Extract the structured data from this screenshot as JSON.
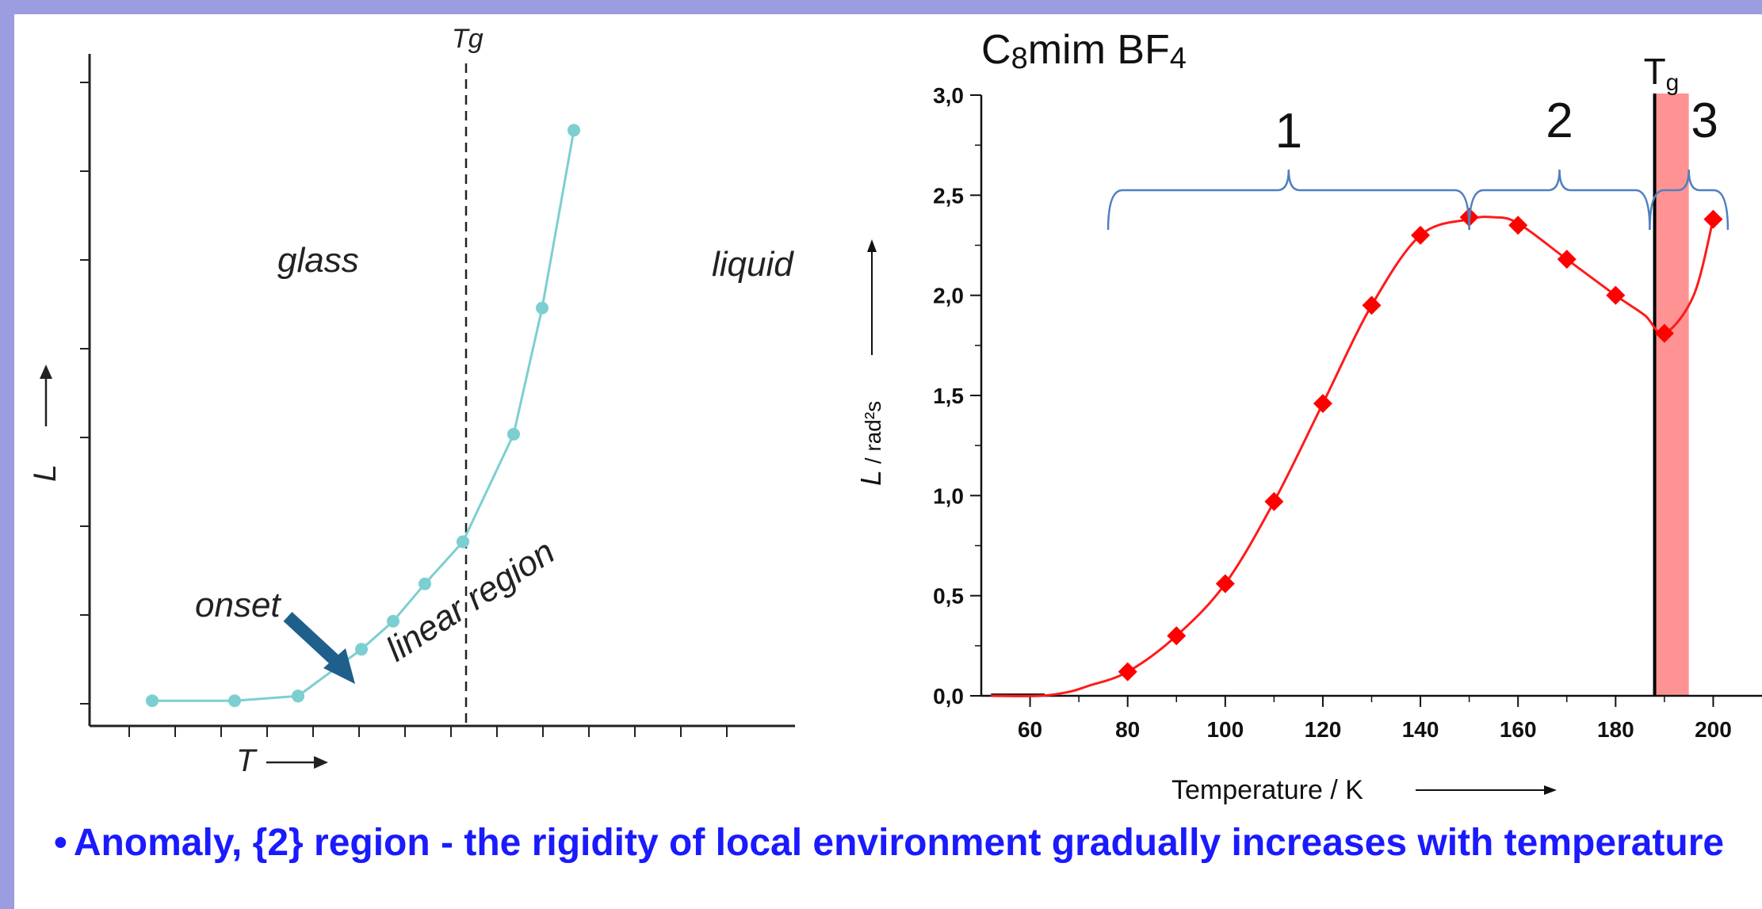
{
  "colors": {
    "frame": "#9c9ce0",
    "left_curve": "#7ccfd0",
    "right_curve": "#ff0000",
    "tg_band": "#ff8080",
    "bracket": "#4f7fc0",
    "caption": "#1a1aff"
  },
  "chart_data": [
    {
      "type": "line",
      "title": "",
      "xlabel": "T",
      "ylabel": "L",
      "tick_labels": "none",
      "series": [
        {
          "x": [
            1.4,
            2.7,
            3.7
          ],
          "y": [
            0.1,
            0.1,
            0.15
          ]
        },
        {
          "x": [
            3.7,
            4.7,
            5.2,
            5.7,
            6.3
          ],
          "y": [
            0.15,
            0.65,
            0.95,
            1.35,
            1.8
          ]
        },
        {
          "x": [
            6.3,
            7.1,
            7.55,
            8.05
          ],
          "y": [
            1.8,
            2.95,
            4.3,
            6.2
          ]
        }
      ],
      "tg_marker": {
        "x": 6.35,
        "label": "Tg"
      },
      "annotations": [
        {
          "text": "glass",
          "x": 2.6,
          "y": 5.0
        },
        {
          "text": "liquid",
          "x": 7.5,
          "y": 4.9
        },
        {
          "text": "onset",
          "x": 1.7,
          "y": 1.0
        },
        {
          "text": "linear region",
          "x": 4.9,
          "y": 1.4
        }
      ]
    },
    {
      "type": "line",
      "title": "C8mim BF4",
      "title_parts": {
        "pre": "C",
        "sub1": "8",
        "mid": "mim BF",
        "sub2": "4"
      },
      "xlabel": "Temperature / K",
      "ylabel_main": "L",
      "ylabel_unit": " / rad²s",
      "xlim": [
        50,
        210
      ],
      "ylim": [
        0,
        3.0
      ],
      "xticks": [
        60,
        80,
        100,
        120,
        140,
        160,
        180,
        200
      ],
      "xtick_labels": [
        "60",
        "80",
        "100",
        "120",
        "140",
        "160",
        "180",
        "200"
      ],
      "yticks": [
        0,
        0.5,
        1.0,
        1.5,
        2.0,
        2.5,
        3.0
      ],
      "ytick_labels": [
        "0,0",
        "0,5",
        "1,0",
        "1,5",
        "2,0",
        "2,5",
        "3,0"
      ],
      "series": [
        {
          "x": [
            80,
            90,
            100,
            110,
            120,
            130,
            140,
            150,
            160,
            170,
            180,
            190,
            200
          ],
          "y": [
            0.12,
            0.3,
            0.56,
            0.97,
            1.46,
            1.95,
            2.3,
            2.39,
            2.35,
            2.18,
            2.0,
            1.81,
            2.38
          ]
        }
      ],
      "curve": {
        "x": [
          52,
          62,
          68,
          72,
          80,
          90,
          100,
          110,
          120,
          130,
          140,
          150,
          155,
          160,
          170,
          180,
          186,
          190,
          196,
          200
        ],
        "y": [
          0.0,
          0.0,
          0.02,
          0.05,
          0.12,
          0.3,
          0.56,
          0.97,
          1.46,
          1.95,
          2.3,
          2.38,
          2.39,
          2.36,
          2.18,
          2.0,
          1.9,
          1.81,
          2.0,
          2.38
        ]
      },
      "tg": {
        "label_main": "T",
        "label_sub": "g",
        "x": 188,
        "band": [
          188,
          195
        ]
      },
      "regions": [
        {
          "label": "1",
          "x_start": 76,
          "x_end": 150
        },
        {
          "label": "2",
          "x_start": 150,
          "x_end": 187
        },
        {
          "label": "3",
          "x_start": 187,
          "x_end": 203
        }
      ]
    }
  ],
  "caption": {
    "bullet": "•",
    "text": "Anomaly, {2} region - the rigidity of local environment gradually increases with temperature"
  }
}
